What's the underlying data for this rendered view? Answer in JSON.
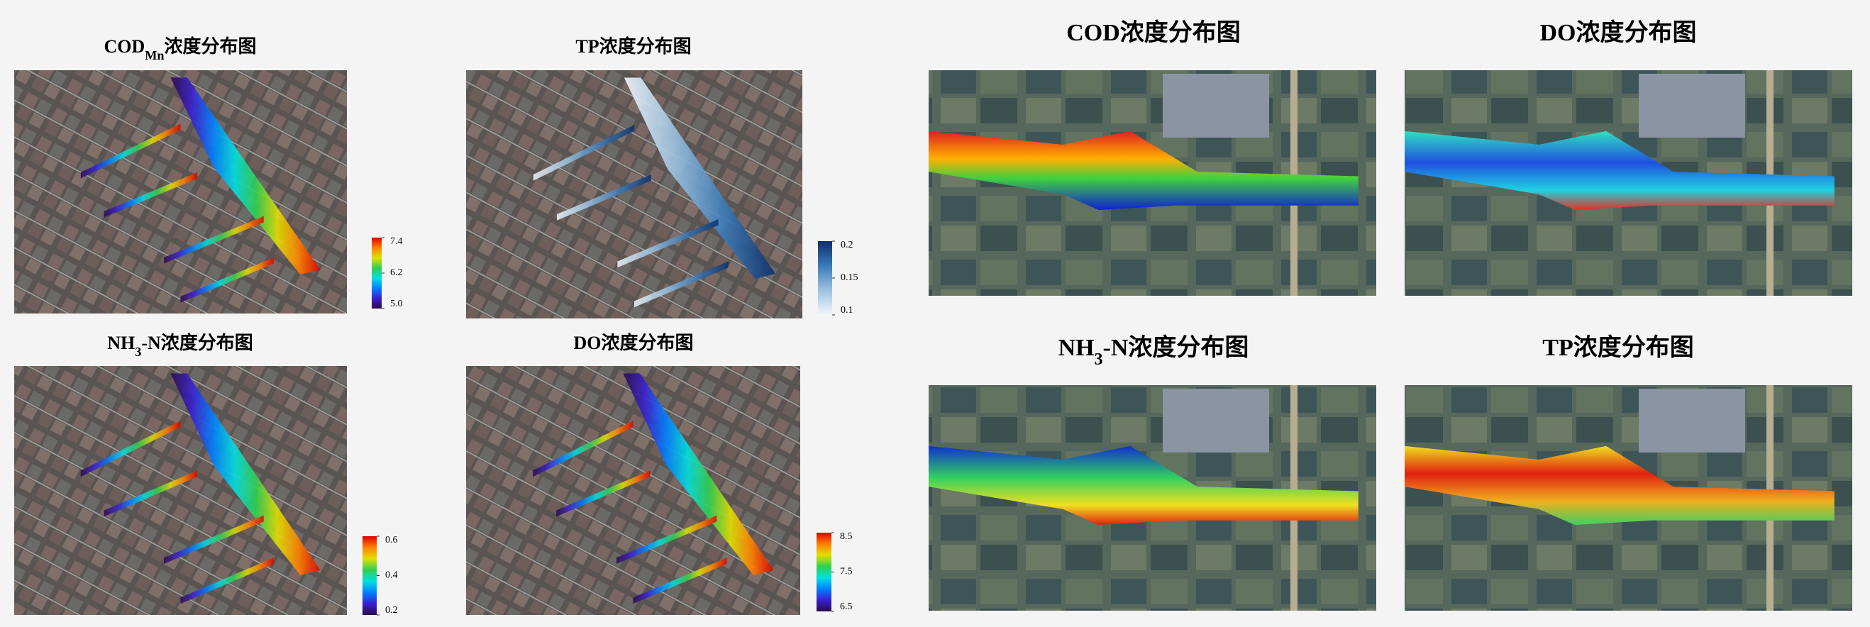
{
  "colormaps": {
    "jet": [
      "#2a0a4a",
      "#3a1fd0",
      "#0080ff",
      "#00e0e0",
      "#30d050",
      "#e0e000",
      "#ff8000",
      "#e00000"
    ],
    "blues": [
      "#f2f7fc",
      "#9cc3e2",
      "#3a7ab8",
      "#0c2f6a"
    ]
  },
  "left_panels": [
    {
      "title": [
        {
          "text": "COD"
        },
        {
          "text": "Mn",
          "sub": true
        },
        {
          "text": "浓度分布图"
        }
      ],
      "colorbar": {
        "colormap": "jet",
        "lim": [
          5,
          7.4
        ],
        "ticks": [
          7.4,
          6.2,
          {
            "value": 5,
            "label": "5.0"
          }
        ]
      }
    },
    {
      "title": [
        {
          "text": "TP浓度分布图"
        }
      ],
      "colorbar": {
        "colormap": "blues",
        "lim": [
          0.1,
          0.2
        ],
        "ticks": [
          0.2,
          0.15,
          0.1
        ]
      }
    },
    {
      "title": [
        {
          "text": "NH"
        },
        {
          "text": "3",
          "sub": true
        },
        {
          "text": "-N浓度分布图"
        }
      ],
      "colorbar": {
        "colormap": "jet",
        "lim": [
          0.2,
          0.6
        ],
        "ticks": [
          0.6,
          0.4,
          0.2
        ]
      }
    },
    {
      "title": [
        {
          "text": "DO浓度分布图"
        }
      ],
      "colorbar": {
        "colormap": "jet",
        "lim": [
          6.5,
          8.5
        ],
        "ticks": [
          8.5,
          7.5,
          6.5
        ]
      }
    }
  ],
  "right_panels": [
    {
      "title": [
        {
          "text": "COD浓度分布图"
        }
      ]
    },
    {
      "title": [
        {
          "text": "DO浓度分布图"
        }
      ]
    },
    {
      "title": [
        {
          "text": "NH"
        },
        {
          "text": "3",
          "sub": true
        },
        {
          "text": "-N浓度分布图"
        }
      ]
    },
    {
      "title": [
        {
          "text": "TP浓度分布图"
        }
      ]
    }
  ]
}
